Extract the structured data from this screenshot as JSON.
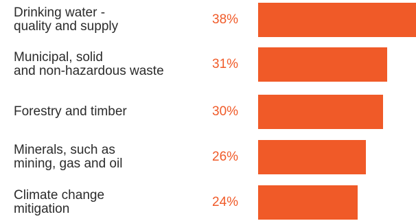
{
  "chart_data": {
    "type": "bar",
    "orientation": "horizontal",
    "categories": [
      "Drinking water -\nquality and supply",
      "Municipal, solid\nand non-hazardous waste",
      "Forestry and timber",
      "Minerals, such as\nmining, gas and oil",
      "Climate change\nmitigation"
    ],
    "values": [
      38,
      31,
      30,
      26,
      24
    ],
    "value_labels": [
      "38%",
      "31%",
      "30%",
      "26%",
      "24%"
    ],
    "unit": "%",
    "bar_color": "#f05a28",
    "value_label_color": "#f05a28",
    "category_label_color": "#2b2b2b",
    "grid": false,
    "legend": "none"
  }
}
